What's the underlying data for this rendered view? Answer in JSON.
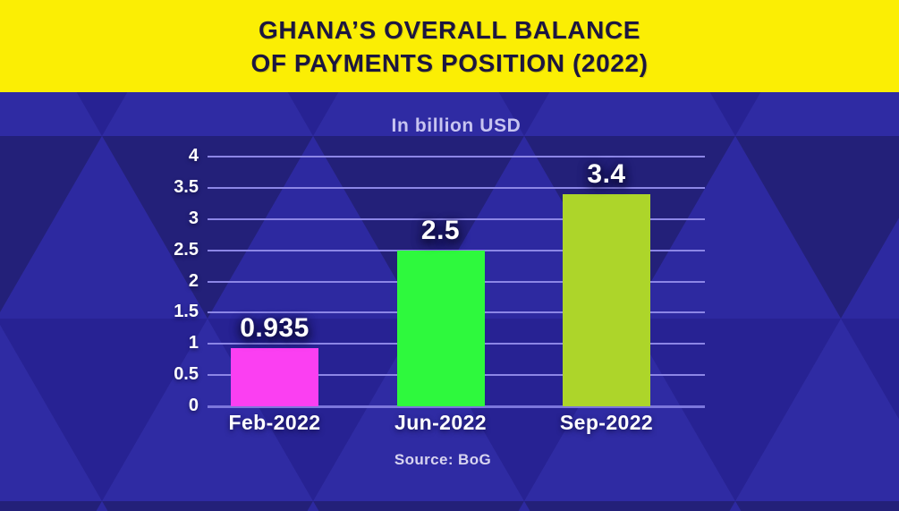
{
  "header": {
    "title_line1": "GHANA’S OVERALL BALANCE",
    "title_line2": "OF PAYMENTS POSITION (2022)",
    "background_color": "#FBEE04",
    "text_color": "#1C1640"
  },
  "chart_data": {
    "type": "bar",
    "title": "GHANA’S OVERALL BALANCE OF PAYMENTS POSITION (2022)",
    "subtitle": "In billion USD",
    "categories": [
      "Feb-2022",
      "Jun-2022",
      "Sep-2022"
    ],
    "values": [
      0.935,
      2.5,
      3.4
    ],
    "value_labels": [
      "0.935",
      "2.5",
      "3.4"
    ],
    "bar_colors": [
      "#FB3FF2",
      "#2EF93D",
      "#ADD52A"
    ],
    "ylim": [
      0,
      4
    ],
    "yticks": [
      0,
      0.5,
      1,
      1.5,
      2,
      2.5,
      3,
      3.5,
      4
    ],
    "ytick_labels": [
      "0",
      "0.5",
      "1",
      "1.5",
      "2",
      "2.5",
      "3",
      "3.5",
      "4"
    ],
    "xlabel": "",
    "ylabel": "",
    "grid": true,
    "legend": null,
    "source": "Source: BoG",
    "colors": {
      "plot_background": "#2A2694",
      "facet_light": "#2F2BA3",
      "facet_mid": "#272293",
      "facet_dark": "#232079",
      "facet_up2": "#2D29A0",
      "gridline": "#8C86E6",
      "axis_line": "#7C77DC",
      "tick_text": "#FFFFFF",
      "value_text": "#FFFFFF",
      "subtitle_text": "#C7C4F0",
      "source_text": "#D8D5F0"
    }
  }
}
